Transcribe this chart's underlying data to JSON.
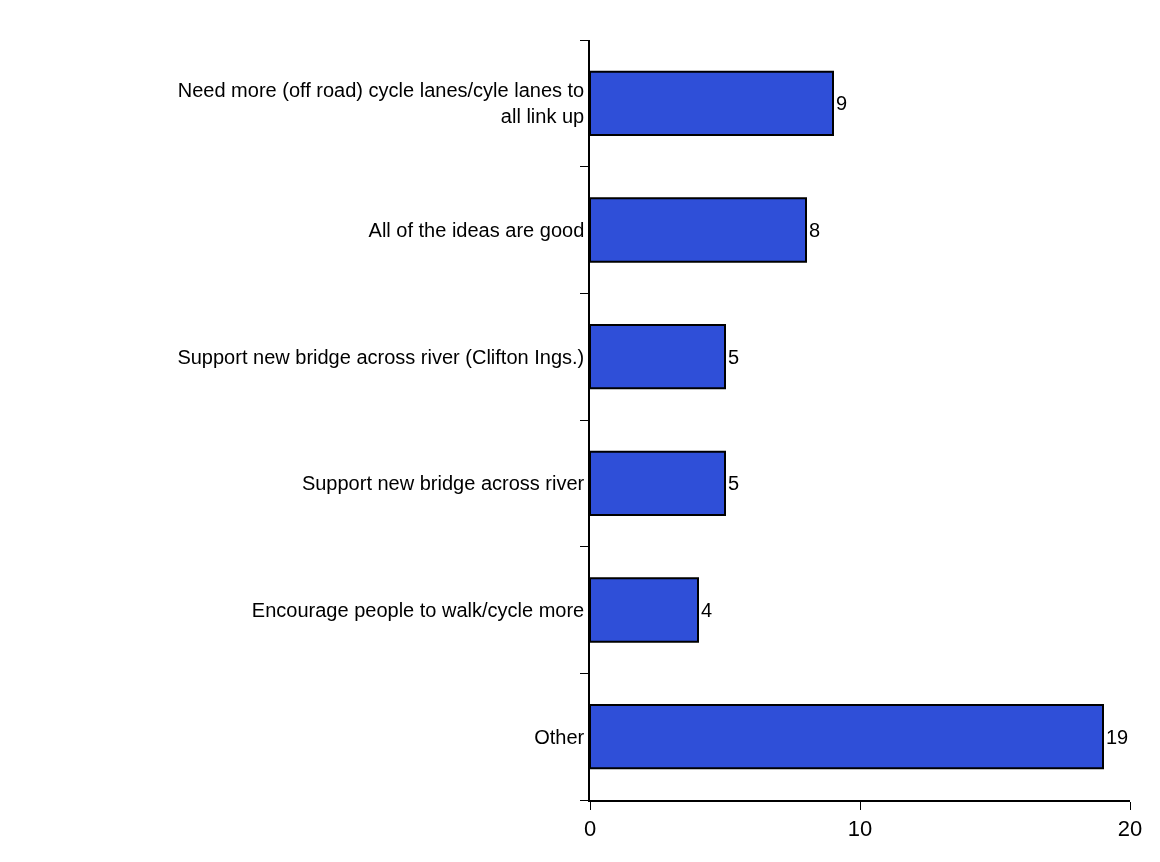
{
  "chart_data": {
    "type": "bar",
    "orientation": "horizontal",
    "categories": [
      "Need more (off road) cycle lanes/cyle lanes to all link up",
      "All of the ideas are good",
      "Support new bridge across river (Clifton Ings.)",
      "Support new bridge across river",
      "Encourage people to walk/cycle more",
      "Other"
    ],
    "values": [
      9,
      8,
      5,
      5,
      4,
      19
    ],
    "color": "#2f4fd8",
    "xlim": [
      0,
      20
    ],
    "xticks": [
      0,
      10,
      20
    ],
    "data_labels": true
  }
}
